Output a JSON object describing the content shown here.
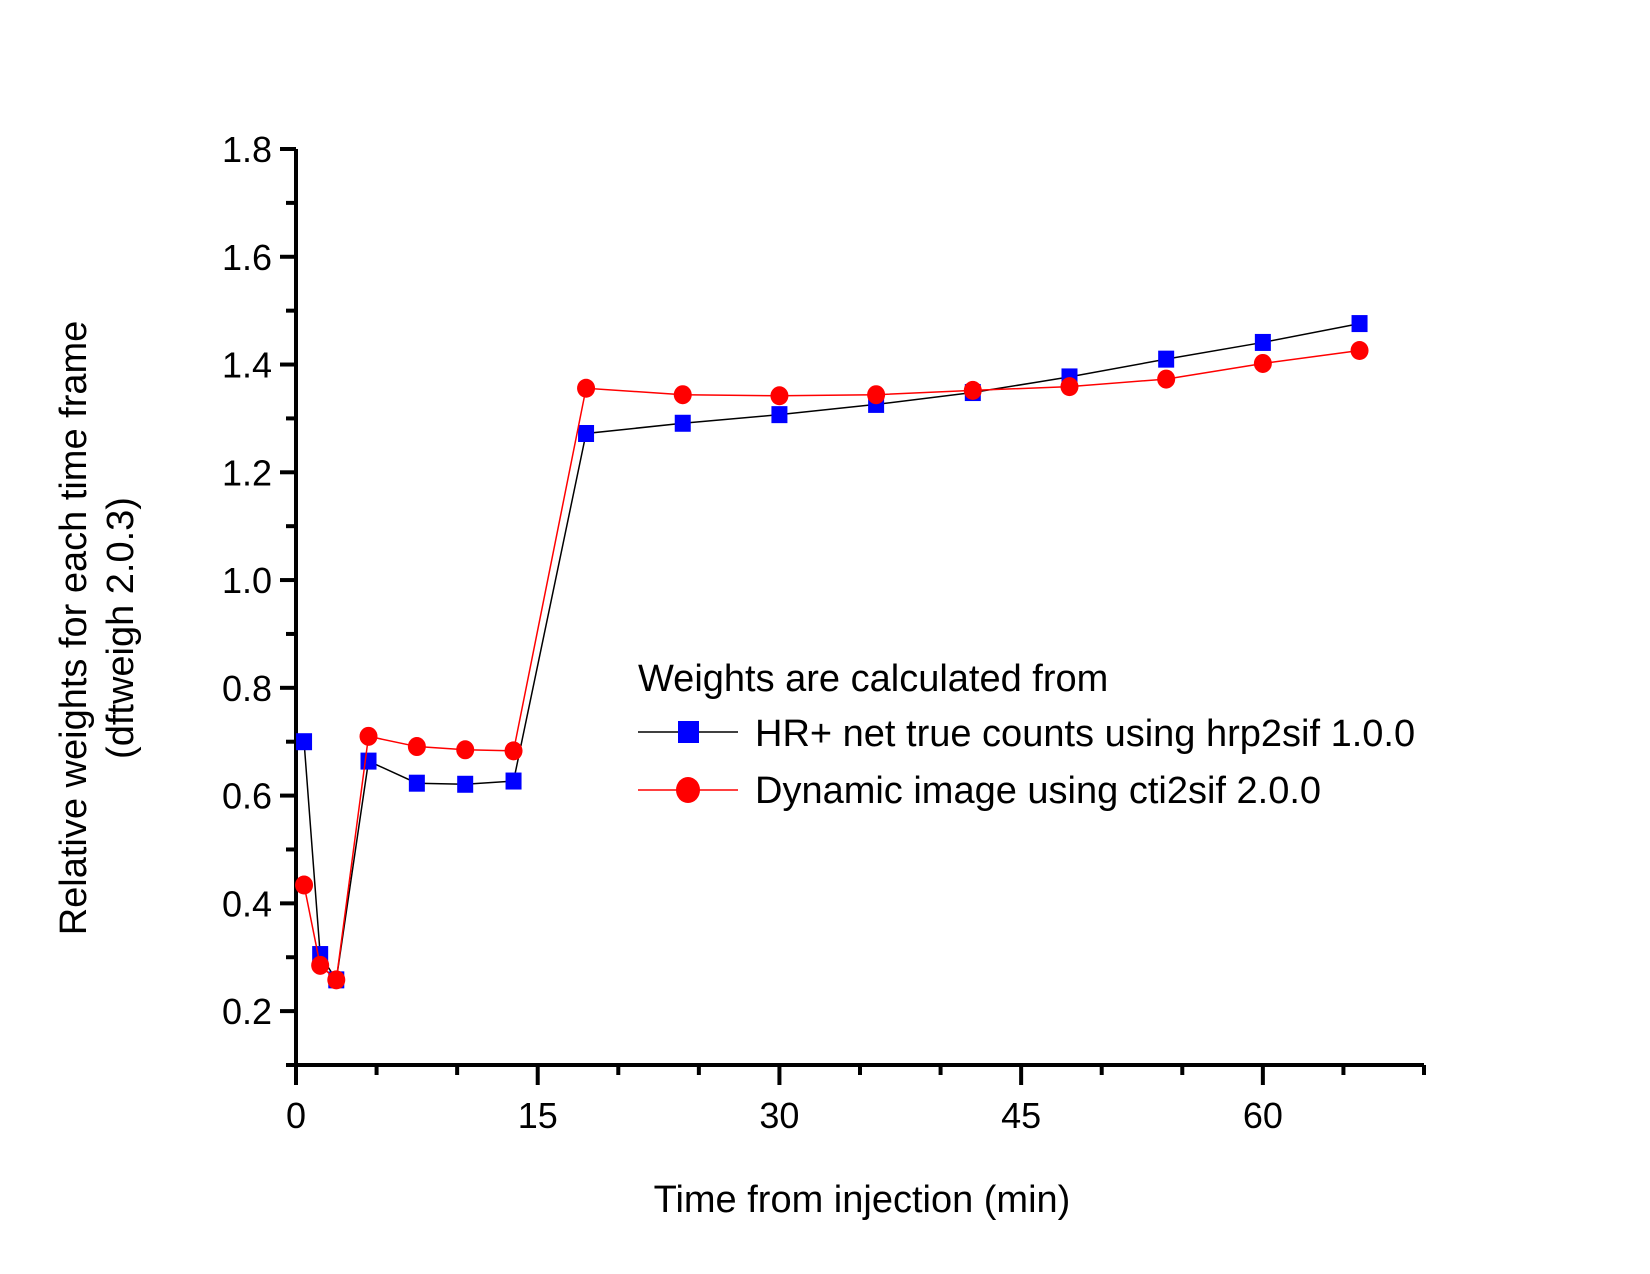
{
  "chart_data": {
    "type": "line",
    "title": "",
    "xlabel": "Time from injection (min)",
    "ylabel": [
      "Relative weights for each time frame",
      "(dftweigh 2.0.3)"
    ],
    "xlim": [
      0,
      70
    ],
    "ylim": [
      0.1,
      1.8
    ],
    "xticks": [
      0,
      15,
      30,
      45,
      60
    ],
    "xtick_labels": [
      "0",
      "15",
      "30",
      "45",
      "60"
    ],
    "x_minor_step": 5,
    "yticks": [
      0.2,
      0.4,
      0.6,
      0.8,
      1.0,
      1.2,
      1.4,
      1.6,
      1.8
    ],
    "ytick_labels": [
      "0.2",
      "0.4",
      "0.6",
      "0.8",
      "1.0",
      "1.2",
      "1.4",
      "1.6",
      "1.8"
    ],
    "y_minor_step": 0.1,
    "grid": false,
    "legend": {
      "title": "Weights are calculated from",
      "placement": "center-right"
    },
    "x": [
      0.5,
      1.5,
      2.5,
      4.5,
      7.5,
      10.5,
      13.5,
      18,
      24,
      30,
      36,
      42,
      48,
      54,
      60,
      66
    ],
    "series": [
      {
        "name": "HR+ net true counts using hrp2sif 1.0.0",
        "marker": "square",
        "marker_color": "#0000ff",
        "line_color": "#000000",
        "values": [
          0.7,
          0.305,
          0.258,
          0.664,
          0.623,
          0.621,
          0.627,
          1.272,
          1.291,
          1.307,
          1.326,
          1.348,
          1.377,
          1.41,
          1.441,
          1.476
        ]
      },
      {
        "name": "Dynamic image using cti2sif 2.0.0",
        "marker": "circle",
        "marker_color": "#ff0000",
        "line_color": "#ff0000",
        "values": [
          0.434,
          0.285,
          0.258,
          0.71,
          0.691,
          0.685,
          0.683,
          1.356,
          1.344,
          1.342,
          1.344,
          1.352,
          1.359,
          1.373,
          1.402,
          1.426
        ]
      }
    ]
  }
}
